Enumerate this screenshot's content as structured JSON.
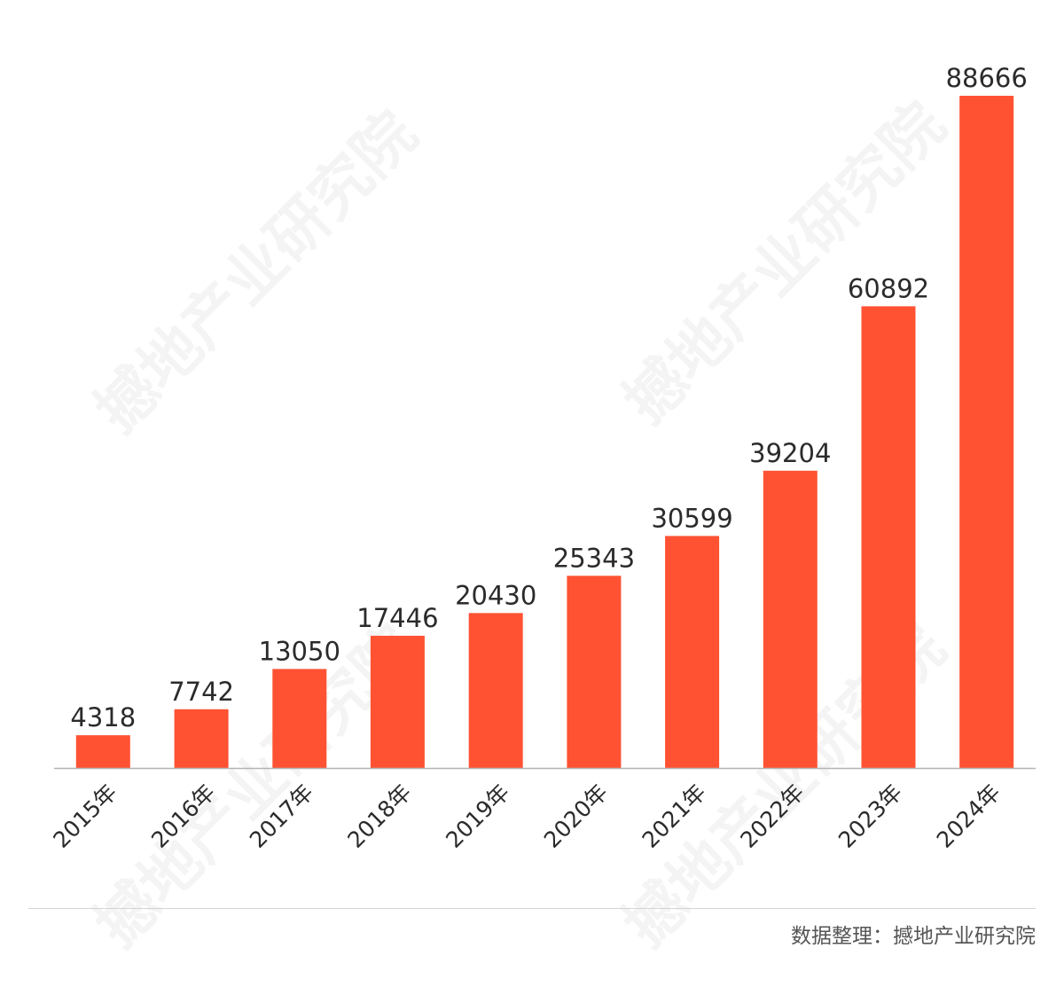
{
  "chart_data": {
    "type": "bar",
    "categories": [
      "2015年",
      "2016年",
      "2017年",
      "2018年",
      "2019年",
      "2020年",
      "2021年",
      "2022年",
      "2023年",
      "2024年"
    ],
    "values": [
      4318,
      7742,
      13050,
      17446,
      20430,
      25343,
      30599,
      39204,
      60892,
      88666
    ],
    "title": "",
    "xlabel": "",
    "ylabel": "",
    "ylim": [
      0,
      88666
    ],
    "grid": false,
    "legend": "none",
    "data_labels": true,
    "bar_color": "#ff5233",
    "axis_color": "#b3b3b3"
  },
  "watermark": {
    "text": "撼地产业研究院"
  },
  "footer": {
    "source": "数据整理：撼地产业研究院"
  }
}
